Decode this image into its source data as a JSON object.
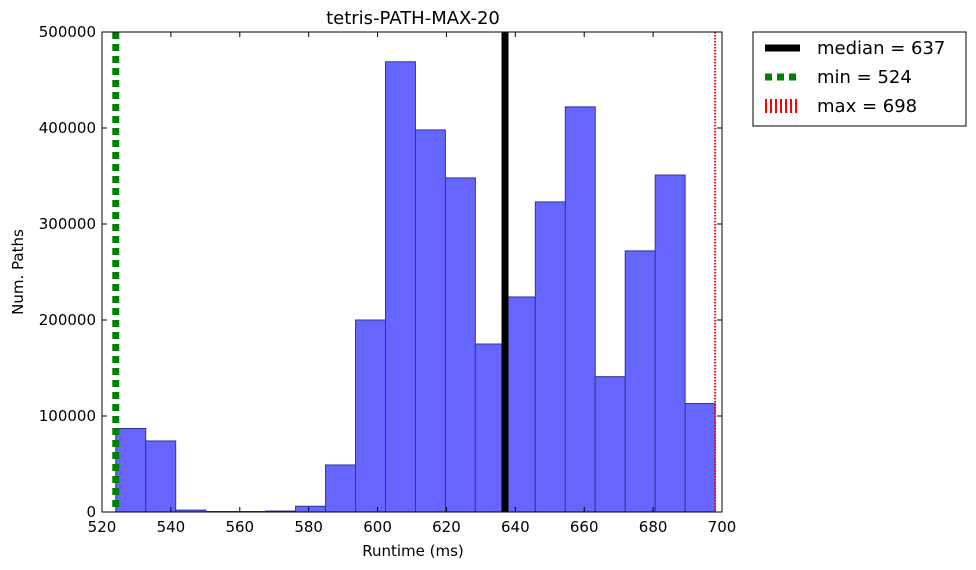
{
  "chart_data": {
    "type": "bar",
    "title": "tetris-PATH-MAX-20",
    "xlabel": "Runtime (ms)",
    "ylabel": "Num. Paths",
    "xlim": [
      520,
      700
    ],
    "ylim": [
      0,
      500000
    ],
    "xticks": [
      520,
      540,
      560,
      580,
      600,
      620,
      640,
      660,
      680,
      700
    ],
    "yticks": [
      0,
      100000,
      200000,
      300000,
      400000,
      500000
    ],
    "bin_edges": [
      524,
      532.7,
      541.4,
      550.1,
      558.8,
      567.5,
      576.2,
      584.9,
      593.6,
      602.3,
      611,
      619.7,
      628.4,
      637.1,
      645.8,
      654.5,
      663.2,
      671.9,
      680.6,
      689.3,
      698
    ],
    "values": [
      87000,
      74000,
      2000,
      500,
      500,
      1000,
      6000,
      49000,
      200000,
      469000,
      398000,
      348000,
      175000,
      224000,
      323000,
      422000,
      141000,
      272000,
      351000,
      113000
    ],
    "bar_color": "#6666ff",
    "grid": false,
    "vlines": [
      {
        "name": "median = 637",
        "x": 637,
        "color": "#000000",
        "style": "solid"
      },
      {
        "name": "min = 524",
        "x": 524,
        "color": "#008000",
        "style": "dashed"
      },
      {
        "name": "max = 698",
        "x": 698,
        "color": "#ff0000",
        "style": "dotted"
      }
    ],
    "legend_placement": "outside-top-right"
  }
}
